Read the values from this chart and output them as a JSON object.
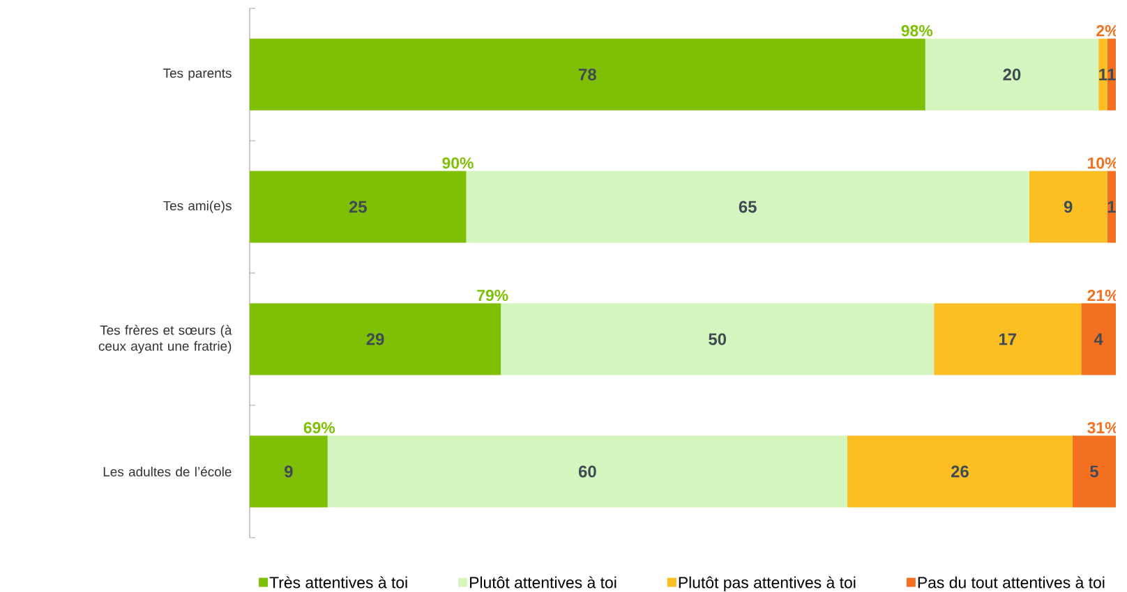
{
  "chart_data": {
    "type": "bar",
    "orientation": "horizontal",
    "stacked": true,
    "data_labels": true,
    "legend": "bottom",
    "xlim": [
      0,
      100
    ],
    "categories": [
      "Tes parents",
      "Tes ami(e)s",
      "Tes frères et sœurs (à ceux ayant une fratrie)",
      "Les adultes de l’école"
    ],
    "series": [
      {
        "name": "Très attentives à toi",
        "color": "#7fbf05",
        "values": [
          78,
          25,
          29,
          9
        ]
      },
      {
        "name": "Plutôt attentives à toi",
        "color": "#d4f5bd",
        "values": [
          20,
          65,
          50,
          60
        ]
      },
      {
        "name": "Plutôt pas attentives à toi",
        "color": "#fbbf24",
        "values": [
          1,
          9,
          17,
          26
        ]
      },
      {
        "name": "Pas du tout attentives à toi",
        "color": "#f37021",
        "values": [
          1,
          1,
          4,
          5
        ]
      }
    ],
    "annotations": [
      {
        "text": "98%",
        "x": 78,
        "y": "Tes parents"
      },
      {
        "text": "2%",
        "x": 100,
        "y": "Tes parents"
      },
      {
        "text": "90%",
        "x": 25,
        "y": "Tes ami(e)s"
      },
      {
        "text": "10%",
        "x": 100,
        "y": "Tes ami(e)s"
      },
      {
        "text": "79%",
        "x": 29,
        "y": "Tes frères et sœurs (à ceux ayant une fratrie)"
      },
      {
        "text": "21%",
        "x": 100,
        "y": "Tes frères et sœurs (à ceux ayant une fratrie)"
      },
      {
        "text": "69%",
        "x": 9,
        "y": "Les adultes de l’école"
      },
      {
        "text": "31%",
        "x": 100,
        "y": "Les adultes de l’école"
      }
    ]
  }
}
